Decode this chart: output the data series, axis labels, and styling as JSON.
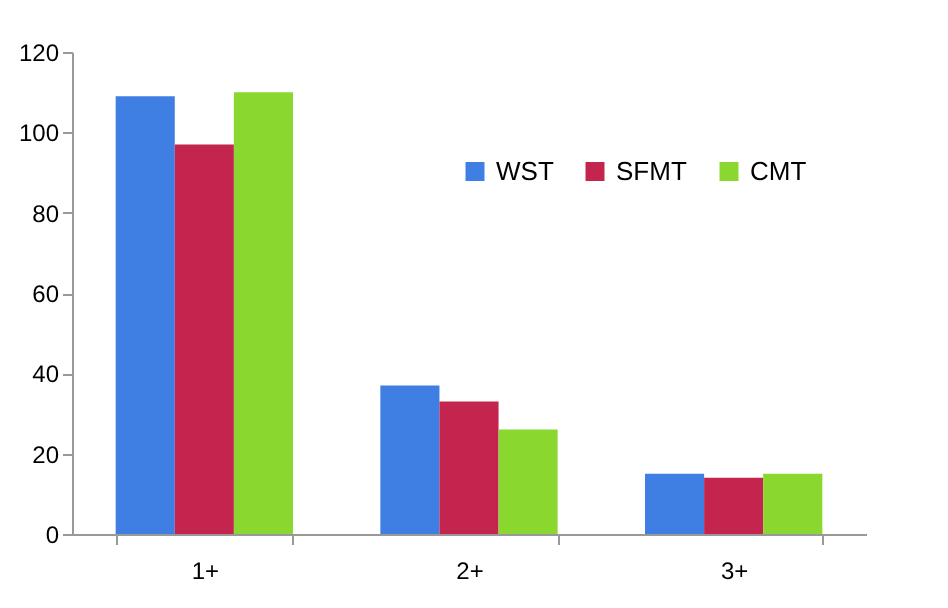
{
  "chart_data": {
    "type": "bar",
    "categories": [
      "1+",
      "2+",
      "3+"
    ],
    "series": [
      {
        "name": "WST",
        "color": "#3f7fe3",
        "values": [
          109,
          37,
          15
        ]
      },
      {
        "name": "SFMT",
        "color": "#c4254e",
        "values": [
          97,
          33,
          14
        ]
      },
      {
        "name": "CMT",
        "color": "#8ad72f",
        "values": [
          110,
          26,
          15
        ]
      }
    ],
    "ylim": [
      0,
      120
    ],
    "yticks": [
      0,
      20,
      40,
      60,
      80,
      100,
      120
    ],
    "grid": false,
    "legend": "top right"
  }
}
